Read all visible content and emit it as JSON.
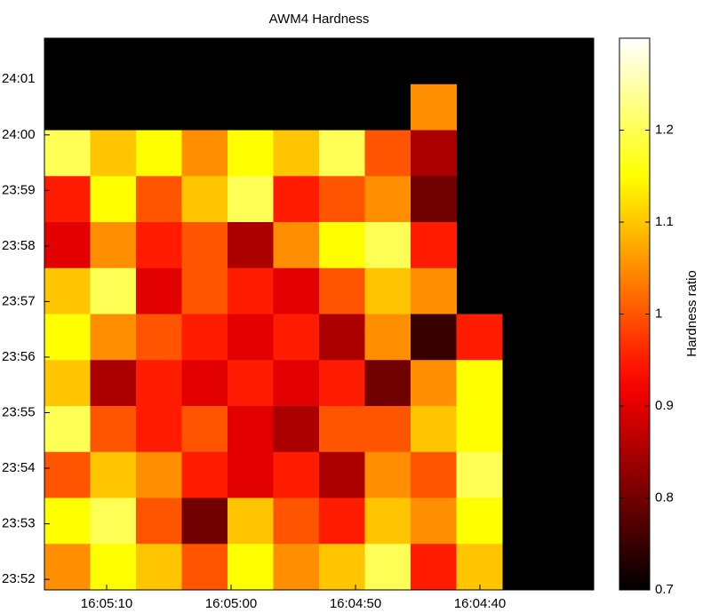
{
  "chart_data": {
    "type": "heatmap",
    "title": "AWM4 Hardness",
    "colorbar_label": "Hardness ratio",
    "colormap": "hot",
    "xlim": [
      57915,
      57870.86
    ],
    "ylim": [
      1431.81,
      1441.74
    ],
    "clim": [
      0.7,
      1.3
    ],
    "xticks": [
      {
        "value": 57910,
        "label": "16:05:10"
      },
      {
        "value": 57900,
        "label": "16:05:00"
      },
      {
        "value": 57890,
        "label": "16:04:50"
      },
      {
        "value": 57880,
        "label": "16:04:40"
      }
    ],
    "yticks": [
      {
        "value": 1432,
        "label": "23:52"
      },
      {
        "value": 1433,
        "label": "23:53"
      },
      {
        "value": 1434,
        "label": "23:54"
      },
      {
        "value": 1435,
        "label": "23:55"
      },
      {
        "value": 1436,
        "label": "23:56"
      },
      {
        "value": 1437,
        "label": "23:57"
      },
      {
        "value": 1438,
        "label": "23:58"
      },
      {
        "value": 1439,
        "label": "23:59"
      },
      {
        "value": 1440,
        "label": "24:00"
      },
      {
        "value": 1441,
        "label": "24:01"
      }
    ],
    "cticks": [
      0.7,
      0.8,
      0.9,
      1,
      1.1,
      1.2
    ],
    "z": [
      [
        null,
        null,
        null,
        null,
        null,
        null,
        null,
        null,
        null,
        null,
        null,
        null
      ],
      [
        null,
        null,
        null,
        null,
        null,
        null,
        null,
        null,
        1.05,
        null,
        null,
        null
      ],
      [
        1.2,
        1.1,
        1.15,
        1.05,
        1.15,
        1.1,
        1.2,
        1.0,
        0.85,
        null,
        null,
        null
      ],
      [
        0.95,
        1.15,
        1.0,
        1.1,
        1.2,
        0.95,
        1.0,
        1.05,
        0.8,
        null,
        null,
        null
      ],
      [
        0.9,
        1.05,
        0.95,
        1.0,
        0.85,
        1.05,
        1.15,
        1.2,
        0.95,
        null,
        null,
        null
      ],
      [
        1.1,
        1.2,
        0.9,
        1.0,
        0.95,
        0.9,
        1.0,
        1.1,
        1.05,
        null,
        null,
        null
      ],
      [
        1.15,
        1.05,
        1.0,
        0.95,
        0.9,
        0.95,
        0.85,
        1.05,
        0.75,
        0.95,
        null,
        null
      ],
      [
        1.1,
        0.85,
        0.95,
        0.9,
        0.95,
        0.9,
        0.95,
        0.8,
        1.05,
        1.15,
        null,
        null
      ],
      [
        1.2,
        1.0,
        0.95,
        1.0,
        0.9,
        0.85,
        1.0,
        1.0,
        1.1,
        1.15,
        null,
        null
      ],
      [
        1.0,
        1.1,
        1.05,
        0.95,
        0.9,
        0.95,
        0.85,
        1.05,
        1.0,
        1.2,
        null,
        null
      ],
      [
        1.15,
        1.2,
        1.0,
        0.8,
        1.1,
        1.0,
        0.95,
        1.1,
        1.05,
        1.15,
        null,
        null
      ],
      [
        1.05,
        1.15,
        1.1,
        1.0,
        1.15,
        1.05,
        1.1,
        1.2,
        0.95,
        1.1,
        null,
        null
      ]
    ]
  }
}
